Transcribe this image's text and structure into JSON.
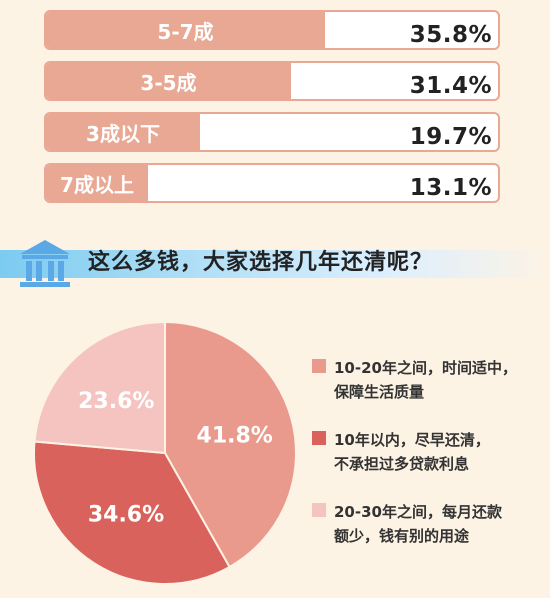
{
  "chart_data": [
    {
      "type": "bar",
      "categories": [
        "5-7成",
        "3-5成",
        "3成以下",
        "7成以上"
      ],
      "values": [
        35.8,
        31.4,
        19.7,
        13.1
      ],
      "value_labels": [
        "35.8%",
        "31.4%",
        "19.7%",
        "13.1%"
      ],
      "colors": {
        "fill": "#e8a894",
        "track": "#ffffff"
      }
    },
    {
      "type": "pie",
      "title": "这么多钱，大家选择几年还清呢？",
      "slices": [
        {
          "value": 41.8,
          "label": "41.8%",
          "legend": [
            "10-20年之间，时间适中，",
            "保障生活质量"
          ],
          "color": "#e99a8c"
        },
        {
          "value": 34.6,
          "label": "34.6%",
          "legend": [
            "10年以内，尽早还清，",
            "不承担过多贷款利息"
          ],
          "color": "#d9635c"
        },
        {
          "value": 23.6,
          "label": "23.6%",
          "legend": [
            "20-30年之间，每月还款",
            "额少，钱有别的用途"
          ],
          "color": "#f6c4c0"
        }
      ]
    }
  ],
  "icons": {
    "banner": "bank-icon"
  }
}
